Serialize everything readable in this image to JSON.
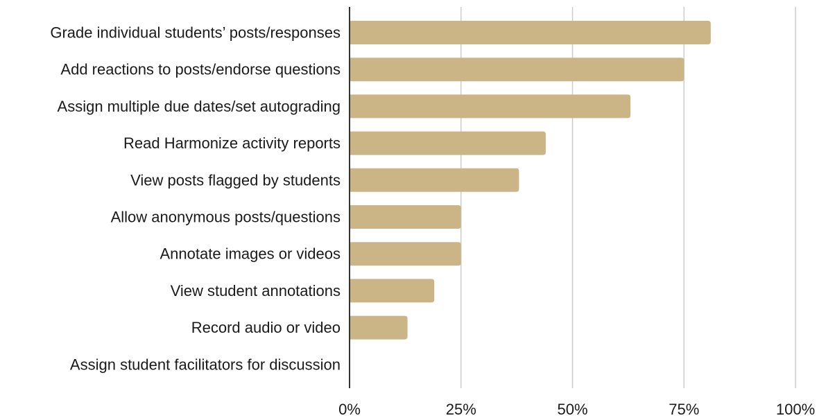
{
  "chart_data": {
    "type": "bar",
    "orientation": "horizontal",
    "title": "",
    "xlabel": "",
    "ylabel": "",
    "categories": [
      "Grade individual students’ posts/responses",
      "Add reactions to posts/endorse questions",
      "Assign multiple due dates/set autograding",
      "Read Harmonize activity reports",
      "View posts flagged by students",
      "Allow anonymous posts/questions",
      "Annotate images or videos",
      "View student annotations",
      "Record audio or video",
      "Assign student facilitators for discussion"
    ],
    "values": [
      0.81,
      0.75,
      0.63,
      0.44,
      0.38,
      0.25,
      0.25,
      0.19,
      0.13,
      0
    ],
    "xlim": [
      0,
      1
    ],
    "x_ticks": [
      0,
      0.25,
      0.5,
      0.75,
      1
    ],
    "x_tick_labels": [
      "0%",
      "25%",
      "50%",
      "75%",
      "100%"
    ],
    "grid": "vertical",
    "legend": "none",
    "colors": {
      "bar": "#cbb587",
      "grid": "#cccccc",
      "axis": "#333333",
      "text": "#1a1a1a"
    }
  }
}
